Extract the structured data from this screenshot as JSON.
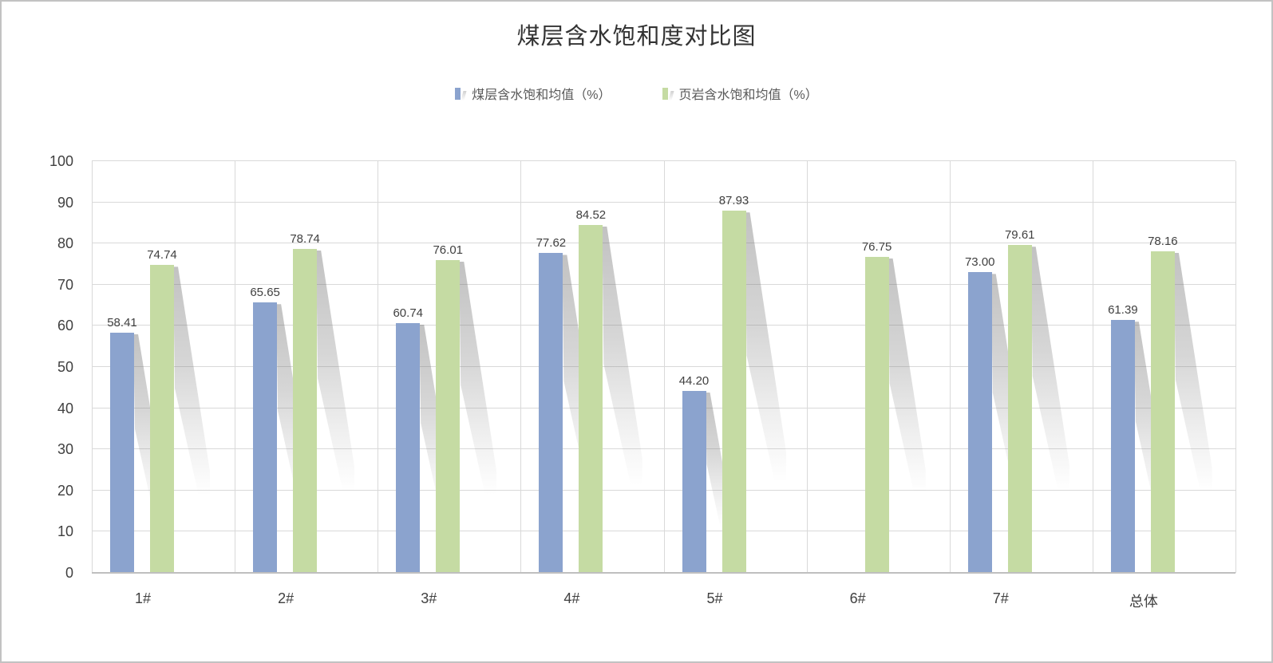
{
  "title": "煤层含水饱和度对比图",
  "legend": {
    "items": [
      {
        "label": "煤层含水饱和均值（%）",
        "color": "#8ba3ce"
      },
      {
        "label": "页岩含水饱和均值（%）",
        "color": "#c5dba3"
      }
    ]
  },
  "chart_data": {
    "type": "bar",
    "title": "煤层含水饱和度对比图",
    "categories": [
      "1#",
      "2#",
      "3#",
      "4#",
      "5#",
      "6#",
      "7#",
      "总体"
    ],
    "series": [
      {
        "name": "煤层含水饱和均值（%）",
        "color": "#8ba3ce",
        "values": [
          58.41,
          65.65,
          60.74,
          77.62,
          44.2,
          null,
          73.0,
          61.39
        ]
      },
      {
        "name": "页岩含水饱和均值（%）",
        "color": "#c5dba3",
        "values": [
          74.74,
          78.74,
          76.01,
          84.52,
          87.93,
          76.75,
          79.61,
          78.16
        ]
      }
    ],
    "xlabel": "",
    "ylabel": "",
    "ylim": [
      0,
      100
    ],
    "ytick_step": 10,
    "ytick_labels": [
      "0",
      "10",
      "20",
      "30",
      "40",
      "50",
      "60",
      "70",
      "80",
      "90",
      "100"
    ],
    "grid": "both",
    "legend_position": "top-center",
    "data_labels": true,
    "data_label_decimals": 2,
    "colors": {
      "gridline": "#d9d9d9",
      "axis_line": "#bfbfbf",
      "label_text": "#404040",
      "title_text": "#333333"
    }
  }
}
